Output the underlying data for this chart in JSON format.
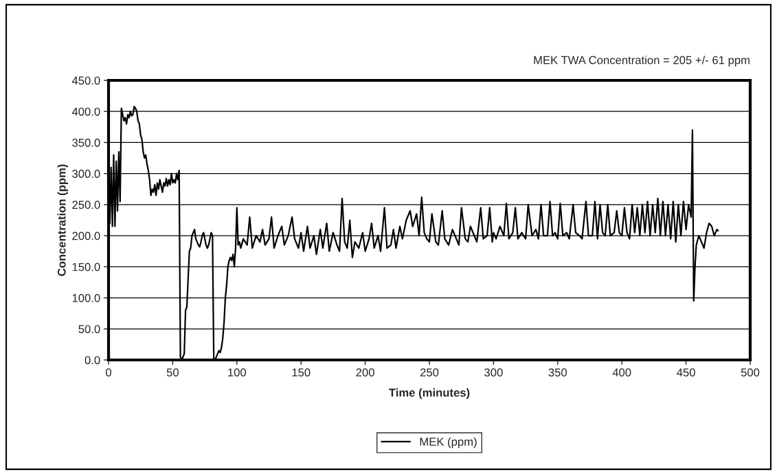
{
  "chart_data": {
    "type": "line",
    "xlabel": "Time (minutes)",
    "ylabel": "Concentration (ppm)",
    "annotations": [
      "MEK TWA Concentration = 205 +/- 61 ppm"
    ],
    "x": [
      0,
      1,
      2,
      3,
      4,
      5,
      6,
      7,
      8,
      9,
      10,
      11,
      12,
      13,
      14,
      15,
      16,
      17,
      18,
      19,
      20,
      21,
      22,
      23,
      24,
      25,
      26,
      27,
      28,
      29,
      30,
      31,
      32,
      33,
      34,
      35,
      36,
      37,
      38,
      39,
      40,
      41,
      42,
      43,
      44,
      45,
      46,
      47,
      48,
      49,
      50,
      51,
      52,
      53,
      54,
      55,
      56,
      57,
      58,
      59,
      60,
      61,
      62,
      63,
      64,
      65,
      66,
      67,
      68,
      69,
      70,
      71,
      72,
      73,
      74,
      75,
      76,
      77,
      78,
      79,
      80,
      81,
      82,
      83,
      84,
      85,
      86,
      87,
      88,
      89,
      90,
      91,
      92,
      93,
      94,
      95,
      96,
      97,
      98,
      99,
      100,
      101,
      102,
      103,
      105,
      108,
      110,
      112,
      115,
      118,
      120,
      122,
      125,
      127,
      129,
      132,
      135,
      137,
      140,
      143,
      145,
      148,
      150,
      152,
      155,
      157,
      160,
      162,
      165,
      167,
      170,
      172,
      175,
      178,
      180,
      182,
      184,
      186,
      188,
      190,
      192,
      195,
      198,
      200,
      203,
      205,
      207,
      210,
      212,
      215,
      217,
      220,
      222,
      224,
      227,
      229,
      232,
      235,
      237,
      240,
      242,
      244,
      246,
      248,
      250,
      252,
      255,
      257,
      260,
      262,
      265,
      268,
      270,
      273,
      275,
      278,
      280,
      282,
      285,
      287,
      290,
      292,
      295,
      297,
      299,
      300,
      302,
      305,
      308,
      310,
      312,
      315,
      317,
      319,
      322,
      325,
      327,
      330,
      333,
      335,
      337,
      339,
      342,
      344,
      346,
      348,
      350,
      352,
      354,
      357,
      359,
      362,
      364,
      367,
      369,
      372,
      374,
      377,
      379,
      381,
      383,
      385,
      387,
      389,
      391,
      394,
      396,
      398,
      400,
      402,
      404,
      406,
      408,
      410,
      412,
      414,
      416,
      418,
      420,
      422,
      424,
      426,
      428,
      430,
      432,
      434,
      436,
      438,
      440,
      442,
      444,
      446,
      448,
      450,
      452,
      454,
      455,
      456,
      457,
      458,
      460,
      462,
      464,
      466,
      468,
      470,
      472,
      474,
      475
    ],
    "series": [
      {
        "name": "MEK (ppm)",
        "color": "#000000",
        "values": [
          320,
          220,
          310,
          215,
          330,
          215,
          320,
          240,
          335,
          255,
          405,
          395,
          385,
          390,
          380,
          395,
          390,
          400,
          393,
          395,
          408,
          405,
          400,
          385,
          380,
          362,
          355,
          335,
          325,
          330,
          315,
          305,
          290,
          265,
          275,
          270,
          282,
          265,
          285,
          275,
          290,
          280,
          270,
          285,
          280,
          292,
          280,
          290,
          282,
          300,
          285,
          290,
          285,
          300,
          290,
          305,
          5,
          0,
          5,
          10,
          80,
          85,
          130,
          175,
          180,
          200,
          205,
          210,
          195,
          190,
          185,
          182,
          190,
          200,
          205,
          195,
          185,
          180,
          185,
          195,
          205,
          200,
          2,
          0,
          5,
          10,
          15,
          12,
          20,
          35,
          60,
          100,
          120,
          150,
          160,
          165,
          160,
          170,
          150,
          180,
          245,
          185,
          190,
          180,
          195,
          185,
          230,
          180,
          200,
          190,
          210,
          185,
          195,
          230,
          180,
          200,
          215,
          185,
          200,
          230,
          195,
          180,
          205,
          175,
          215,
          180,
          200,
          170,
          210,
          180,
          220,
          175,
          205,
          185,
          175,
          260,
          190,
          180,
          225,
          165,
          190,
          180,
          205,
          175,
          195,
          220,
          180,
          200,
          175,
          245,
          180,
          185,
          210,
          180,
          215,
          195,
          225,
          240,
          215,
          235,
          200,
          262,
          205,
          195,
          190,
          235,
          190,
          185,
          240,
          195,
          185,
          210,
          200,
          185,
          245,
          195,
          190,
          215,
          200,
          190,
          245,
          195,
          200,
          245,
          190,
          205,
          195,
          215,
          200,
          252,
          195,
          205,
          245,
          195,
          205,
          195,
          250,
          200,
          210,
          195,
          250,
          200,
          200,
          255,
          200,
          205,
          195,
          252,
          200,
          205,
          195,
          250,
          205,
          200,
          195,
          255,
          200,
          200,
          255,
          195,
          250,
          205,
          200,
          250,
          200,
          205,
          240,
          205,
          200,
          245,
          205,
          195,
          250,
          205,
          245,
          200,
          250,
          205,
          255,
          200,
          250,
          205,
          260,
          200,
          255,
          200,
          250,
          195,
          255,
          190,
          250,
          200,
          255,
          210,
          250,
          230,
          370,
          95,
          150,
          185,
          200,
          190,
          180,
          205,
          220,
          215,
          200,
          210,
          208
        ]
      }
    ],
    "xlim": [
      0,
      500
    ],
    "xticks": [
      0,
      50,
      100,
      150,
      200,
      250,
      300,
      350,
      400,
      450,
      500
    ],
    "ylim": [
      0,
      450
    ],
    "yticks": [
      {
        "value": 0,
        "label": "0.0"
      },
      {
        "value": 50,
        "label": "50.0"
      },
      {
        "value": 100,
        "label": "100.0"
      },
      {
        "value": 150,
        "label": "150.0"
      },
      {
        "value": 200,
        "label": "200.0"
      },
      {
        "value": 250,
        "label": "250.0"
      },
      {
        "value": 300,
        "label": "300.0"
      },
      {
        "value": 350,
        "label": "350.0"
      },
      {
        "value": 400,
        "label": "400.0"
      },
      {
        "value": 450,
        "label": "450.0"
      }
    ],
    "grid": "y",
    "legend": "bottom",
    "marker": "none",
    "line_style": "solid"
  }
}
